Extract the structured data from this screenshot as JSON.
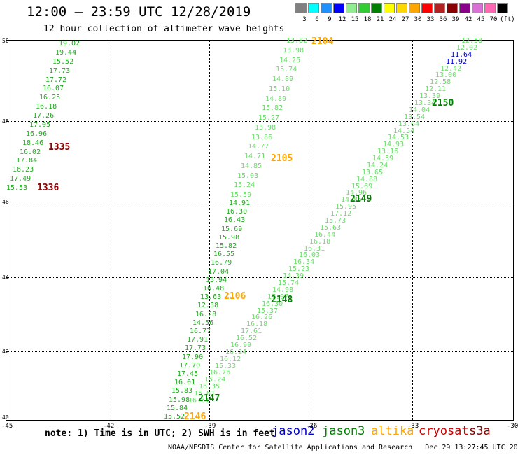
{
  "title": "12:00 – 23:59 UTC 12/28/2019",
  "subtitle": "12 hour collection of altimeter wave heights",
  "scale": {
    "colors": [
      "#808080",
      "#00ffff",
      "#1e90ff",
      "#0000ff",
      "#90ee90",
      "#32cd32",
      "#008000",
      "#ffff00",
      "#ffd700",
      "#ffa500",
      "#ff0000",
      "#b22222",
      "#8b0000",
      "#8b008b",
      "#da70d6",
      "#ff69b4",
      "#000000"
    ],
    "labels": [
      "3",
      "6",
      "9",
      "12",
      "15",
      "18",
      "21",
      "24",
      "27",
      "30",
      "33",
      "36",
      "39",
      "42",
      "45",
      "70",
      "(ft)"
    ]
  },
  "axes": {
    "lat_labels": [
      "50",
      "48",
      "46",
      "44",
      "42",
      "40"
    ],
    "lon_labels": [
      "-45",
      "-42",
      "-39",
      "-36",
      "-33",
      "-30"
    ]
  },
  "tracks": [
    {
      "color": "#1faa1f",
      "points": [
        "19.02",
        "19.44",
        "15.52",
        "17.73",
        "17.72",
        "16.07",
        "16.25",
        "16.18",
        "17.26",
        "17.05",
        "16.96",
        "18.46",
        "16.02",
        "17.84",
        "16.23",
        "17.49",
        "15.53"
      ]
    },
    {
      "color": "#66dd66",
      "points": [
        "13.82",
        "13.98",
        "14.25",
        "15.74",
        "14.89",
        "15.10",
        "14.89",
        "15.82",
        "15.27",
        "13.98",
        "13.86",
        "14.77",
        "14.71",
        "14.85",
        "15.03",
        "15.24",
        "15.59"
      ]
    },
    {
      "color": "#1faa1f",
      "points": [
        "14.91",
        "16.30",
        "16.43",
        "15.69",
        "15.98",
        "15.82",
        "16.55",
        "16.79",
        "17.04",
        "15.94",
        "16.48",
        "13.63",
        "12.58",
        "16.28",
        "14.56",
        "16.77",
        "17.91",
        "17.73",
        "17.90",
        "17.70",
        "17.45",
        "16.01",
        "15.83",
        "15.98",
        "15.84",
        "15.52"
      ]
    },
    {
      "color": "#66dd66",
      "points": [
        "12.58",
        "12.02",
        "11.64",
        "11.92",
        "12.42",
        "13.00",
        "12.58",
        "12.11",
        "13.39",
        "13.34",
        "14.04",
        "13.54",
        "13.64",
        "14.54",
        "14.53",
        "14.93",
        "13.16",
        "14.59",
        "14.24",
        "13.65",
        "14.88",
        "15.69",
        "14.96",
        "14.85",
        "15.95",
        "17.12",
        "15.73",
        "15.63",
        "16.44",
        "16.18",
        "16.31",
        "16.03",
        "16.34",
        "15.23",
        "14.39",
        "15.74",
        "14.98",
        "17.07",
        "16.30",
        "15.37",
        "16.26",
        "16.18",
        "17.61",
        "16.52",
        "16.99",
        "16.24",
        "16.12",
        "15.33",
        "16.76",
        "15.24",
        "16.35",
        "15.61",
        "16.61"
      ]
    }
  ],
  "times": [
    {
      "label": "1335",
      "color": "#8b0000"
    },
    {
      "label": "1336",
      "color": "#8b0000"
    },
    {
      "label": "2104",
      "color": "#ffa500"
    },
    {
      "label": "2105",
      "color": "#ffa500"
    },
    {
      "label": "2106",
      "color": "#ffa500"
    },
    {
      "label": "2146",
      "color": "#ffa500"
    },
    {
      "label": "2147",
      "color": "#008000"
    },
    {
      "label": "2148",
      "color": "#008000"
    },
    {
      "label": "2149",
      "color": "#008000"
    },
    {
      "label": "2150",
      "color": "#008000"
    }
  ],
  "note": "note: 1) Time is in UTC; 2) SWH is in feet",
  "satellites": [
    {
      "name": "jason2",
      "color": "#0000cc"
    },
    {
      "name": "jason3",
      "color": "#008000"
    },
    {
      "name": "altika",
      "color": "#ffa500"
    },
    {
      "name": "cryosat",
      "color": "#cc0000"
    },
    {
      "name": "s3a",
      "color": "#8b0000"
    }
  ],
  "footer": "NOAA/NESDIS Center for Satellite Applications and Research   Dec 29 13:27:45 UTC 2019"
}
